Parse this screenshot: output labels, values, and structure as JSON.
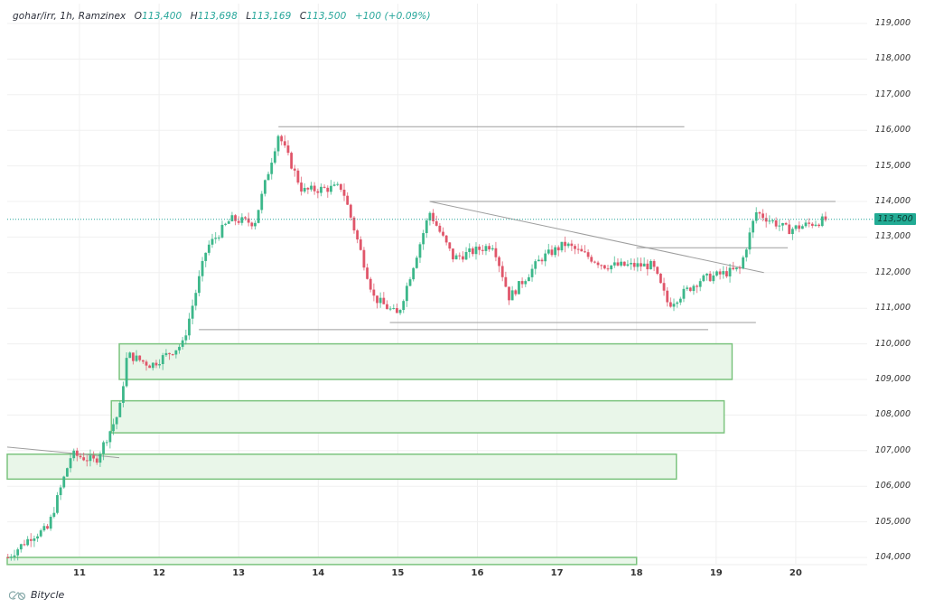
{
  "legend": {
    "symbol": "gohar/irr, 1h, Ramzinex",
    "open_label": "O",
    "open": "113,400",
    "high_label": "H",
    "high": "113,698",
    "low_label": "L",
    "low": "113,169",
    "close_label": "C",
    "close": "113,500",
    "change": "+100 (+0.09%)"
  },
  "brand": {
    "name": "Bitycle"
  },
  "price_tag": {
    "value": "113,500"
  },
  "colors": {
    "up": "#26a69a",
    "down": "#ef5350",
    "up_candle": "#3cb78a",
    "down_candle": "#e0566a",
    "zone_fill": "#e9f6e9",
    "zone_border": "#7cc47f",
    "line": "#9e9e9e",
    "grid": "#f0f0f0",
    "price_line": "#26a69a"
  },
  "chart_data": {
    "type": "candlestick",
    "title": "gohar/irr, 1h, Ramzinex",
    "xlabel": "",
    "ylabel": "",
    "ylim": [
      103800,
      119500
    ],
    "y_ticks": [
      "119,000",
      "118,000",
      "117,000",
      "116,000",
      "115,000",
      "114,000",
      "113,000",
      "112,000",
      "111,000",
      "110,000",
      "109,000",
      "108,000",
      "107,000",
      "106,000",
      "105,000",
      "104,000"
    ],
    "x_ticks": [
      "11",
      "12",
      "13",
      "14",
      "15",
      "16",
      "17",
      "18",
      "19",
      "20"
    ],
    "last_price": 113500,
    "ohlc_summary": {
      "open": 113400,
      "high": 113698,
      "low": 113169,
      "close": 113500,
      "change": 100,
      "change_pct": 0.09
    },
    "price_path": [
      {
        "x": "10.1",
        "close": 104000
      },
      {
        "x": "10.4",
        "close": 104600
      },
      {
        "x": "10.6",
        "close": 104800
      },
      {
        "x": "10.9",
        "close": 106900
      },
      {
        "x": "11.2",
        "close": 106700
      },
      {
        "x": "11.5",
        "close": 108100
      },
      {
        "x": "11.6",
        "close": 109700
      },
      {
        "x": "11.9",
        "close": 109400
      },
      {
        "x": "12.3",
        "close": 110000
      },
      {
        "x": "12.6",
        "close": 112700
      },
      {
        "x": "12.9",
        "close": 113500
      },
      {
        "x": "13.2",
        "close": 113400
      },
      {
        "x": "13.5",
        "close": 115900
      },
      {
        "x": "13.8",
        "close": 114300
      },
      {
        "x": "14.3",
        "close": 114400
      },
      {
        "x": "14.7",
        "close": 111300
      },
      {
        "x": "15.0",
        "close": 110800
      },
      {
        "x": "15.4",
        "close": 113700
      },
      {
        "x": "15.7",
        "close": 112400
      },
      {
        "x": "16.2",
        "close": 112800
      },
      {
        "x": "16.4",
        "close": 111300
      },
      {
        "x": "16.8",
        "close": 112400
      },
      {
        "x": "17.1",
        "close": 112800
      },
      {
        "x": "17.6",
        "close": 112200
      },
      {
        "x": "18.2",
        "close": 112200
      },
      {
        "x": "18.4",
        "close": 111100
      },
      {
        "x": "18.8",
        "close": 111800
      },
      {
        "x": "19.3",
        "close": 112100
      },
      {
        "x": "19.5",
        "close": 113700
      },
      {
        "x": "19.9",
        "close": 113200
      },
      {
        "x": "20.4",
        "close": 113500
      }
    ],
    "annotations": {
      "horizontal_lines": [
        {
          "price": 116100,
          "from": "13.5",
          "to": "18.6"
        },
        {
          "price": 114000,
          "from": "15.4",
          "to": "20.5"
        },
        {
          "price": 112700,
          "from": "18.0",
          "to": "19.9"
        },
        {
          "price": 110600,
          "from": "14.9",
          "to": "19.5"
        },
        {
          "price": 110400,
          "from": "12.5",
          "to": "18.9"
        }
      ],
      "trend_lines": [
        {
          "from": {
            "x": "15.4",
            "price": 114000
          },
          "to": {
            "x": "19.6",
            "price": 112000
          }
        },
        {
          "from": {
            "x": "10.0",
            "price": 107100
          },
          "to": {
            "x": "11.5",
            "price": 106800
          }
        }
      ],
      "zones": [
        {
          "top": 110000,
          "bottom": 109000,
          "from": "11.5",
          "to": "19.2"
        },
        {
          "top": 108400,
          "bottom": 107500,
          "from": "11.4",
          "to": "19.1"
        },
        {
          "top": 106900,
          "bottom": 106200,
          "from": "10.0",
          "to": "18.5"
        },
        {
          "top": 104000,
          "bottom": 103800,
          "from": "10.0",
          "to": "18.0"
        }
      ]
    }
  }
}
